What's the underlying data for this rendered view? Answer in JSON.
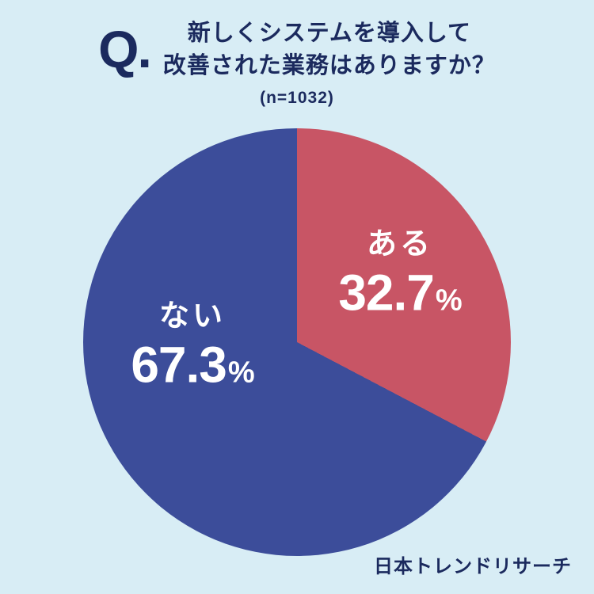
{
  "header": {
    "q_mark": "Q.",
    "title_line1": "新しくシステムを導入して",
    "title_line2": "改善された業務はありますか？",
    "sample": "(n=1032)"
  },
  "footer": {
    "brand": "日本トレンドリサーチ"
  },
  "colors": {
    "bg": "#d8edf5",
    "navy": "#1b2a5e",
    "red": "#c85565",
    "blue": "#3c4d9a",
    "label": "#ffffff"
  },
  "chart_data": {
    "type": "pie",
    "title": "新しくシステムを導入して改善された業務はありますか？",
    "sample_label": "(n=1032)",
    "sample_size": 1032,
    "start_angle_deg": 0,
    "direction": "clockwise",
    "legend": "none",
    "unit": "%",
    "slices": [
      {
        "label": "ある",
        "value": 32.7,
        "color": "#c85565"
      },
      {
        "label": "ない",
        "value": 67.3,
        "color": "#3c4d9a"
      }
    ]
  }
}
